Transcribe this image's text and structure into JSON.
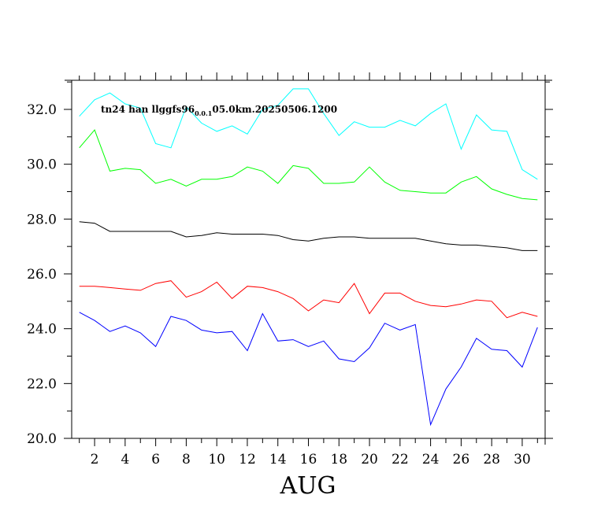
{
  "chart_data": {
    "type": "line",
    "title_main": "tn24 han llggfs96",
    "title_sub": "0.0.1",
    "title_tail": "05.0km.20250506.1200",
    "xlabel": "AUG",
    "ylabel": "",
    "xlim": [
      0.5,
      31.5
    ],
    "ylim": [
      20.0,
      33.0
    ],
    "xticks_labeled": [
      2,
      4,
      6,
      8,
      10,
      12,
      14,
      16,
      18,
      20,
      22,
      24,
      26,
      28,
      30
    ],
    "xtick_labels": [
      "2",
      "4",
      "6",
      "8",
      "10",
      "12",
      "14",
      "16",
      "18",
      "20",
      "22",
      "24",
      "26",
      "28",
      "30"
    ],
    "yticks_labeled": [
      20,
      22,
      24,
      26,
      28,
      30,
      32
    ],
    "ytick_labels": [
      "20.0",
      "22.0",
      "24.0",
      "26.0",
      "28.0",
      "30.0",
      "32.0"
    ],
    "grid": false,
    "x": [
      1,
      2,
      3,
      4,
      5,
      6,
      7,
      8,
      9,
      10,
      11,
      12,
      13,
      14,
      15,
      16,
      17,
      18,
      19,
      20,
      21,
      22,
      23,
      24,
      25,
      26,
      27,
      28,
      29,
      30,
      31
    ],
    "series": [
      {
        "color": "#00ffff",
        "values": [
          31.75,
          32.35,
          32.6,
          32.2,
          32.05,
          30.75,
          30.6,
          32.1,
          31.5,
          31.2,
          31.4,
          31.1,
          32.0,
          32.15,
          32.75,
          32.75,
          31.85,
          31.05,
          31.55,
          31.35,
          31.35,
          31.6,
          31.4,
          31.85,
          32.2,
          30.55,
          31.8,
          31.25,
          31.2,
          29.8,
          29.45
        ]
      },
      {
        "color": "#00ff00",
        "values": [
          30.6,
          31.25,
          29.75,
          29.85,
          29.8,
          29.3,
          29.45,
          29.2,
          29.45,
          29.45,
          29.55,
          29.9,
          29.75,
          29.3,
          29.95,
          29.85,
          29.3,
          29.3,
          29.35,
          29.9,
          29.35,
          29.05,
          29.0,
          28.95,
          28.95,
          29.35,
          29.55,
          29.1,
          28.9,
          28.75,
          28.7
        ]
      },
      {
        "color": "#000000",
        "values": [
          27.9,
          27.85,
          27.55,
          27.55,
          27.55,
          27.55,
          27.55,
          27.35,
          27.4,
          27.5,
          27.45,
          27.45,
          27.45,
          27.4,
          27.25,
          27.2,
          27.3,
          27.35,
          27.35,
          27.3,
          27.3,
          27.3,
          27.3,
          27.2,
          27.1,
          27.05,
          27.05,
          27.0,
          26.95,
          26.85,
          26.85
        ]
      },
      {
        "color": "#ff0000",
        "values": [
          25.55,
          25.55,
          25.5,
          25.45,
          25.4,
          25.65,
          25.75,
          25.15,
          25.35,
          25.7,
          25.1,
          25.55,
          25.5,
          25.35,
          25.1,
          24.65,
          25.05,
          24.95,
          25.65,
          24.55,
          25.3,
          25.3,
          25.0,
          24.85,
          24.8,
          24.9,
          25.05,
          25.0,
          24.4,
          24.6,
          24.45
        ]
      },
      {
        "color": "#0000ff",
        "values": [
          24.6,
          24.3,
          23.9,
          24.1,
          23.85,
          23.35,
          24.45,
          24.3,
          23.95,
          23.85,
          23.9,
          23.2,
          24.55,
          23.55,
          23.6,
          23.35,
          23.55,
          22.9,
          22.8,
          23.3,
          24.2,
          23.95,
          24.15,
          20.5,
          21.8,
          22.6,
          23.65,
          23.25,
          23.2,
          22.6,
          24.05
        ]
      }
    ]
  }
}
